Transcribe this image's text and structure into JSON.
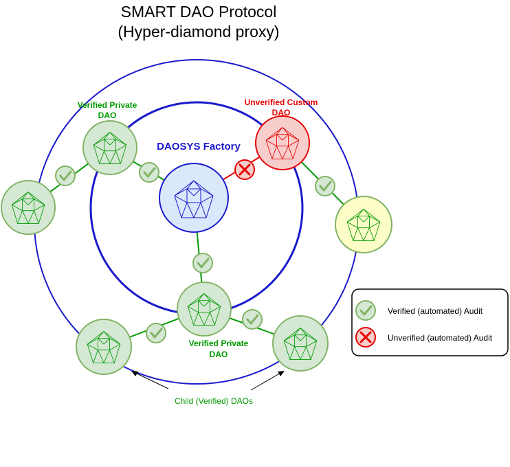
{
  "title": {
    "line1": "SMART DAO Protocol",
    "line2": "(Hyper-diamond proxy)"
  },
  "labels": {
    "factory": "DAOSYS Factory",
    "verified_top_l1": "Verified Private",
    "verified_top_l2": "DAO",
    "unverified_l1": "Unverified Custom",
    "unverified_l2": "DAO",
    "verified_bottom_l1": "Verified Private",
    "verified_bottom_l2": "DAO",
    "child_daos": "Child (Verified) DAOs"
  },
  "legend": {
    "verified": "Verified (automated) Audit",
    "unverified": "Unverified (automated) Audit"
  },
  "colors": {
    "ring_blue": "#1a1acc",
    "factory_fill": "#dae8fc",
    "factory_stroke": "#1a1acc",
    "verified_fill": "#d5e8d4",
    "verified_stroke": "#82b366",
    "verified_gem": "#009900",
    "unverified_fill": "#f8cecc",
    "unverified_stroke": "#e60000",
    "pending_fill": "#fdfdc8",
    "label_green": "#009900",
    "label_red": "#e60000",
    "label_blue": "#1a1acc"
  },
  "icons": {
    "check": "check-badge-icon",
    "cross": "cross-badge-icon",
    "gem": "diamond-gem-icon"
  }
}
